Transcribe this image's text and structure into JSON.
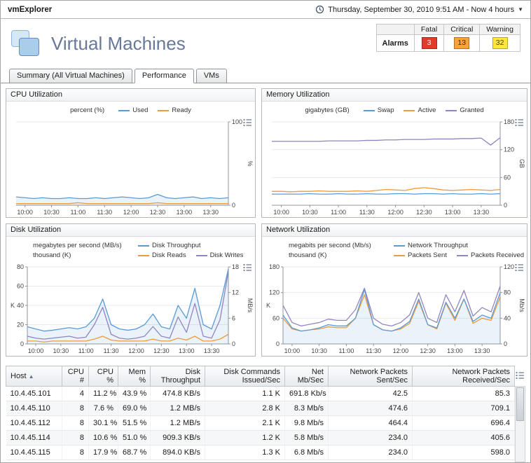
{
  "header": {
    "app_title": "vmExplorer",
    "time_range": "Thursday, September 30, 2010 9:51 AM - Now 4 hours",
    "page_title": "Virtual Machines"
  },
  "alarms": {
    "label": "Alarms",
    "columns": [
      "Fatal",
      "Critical",
      "Warning"
    ],
    "fatal": "3",
    "critical": "13",
    "warning": "32",
    "colors": {
      "fatal": "#e23b2e",
      "critical": "#f9a13a",
      "warning": "#ffe53d"
    }
  },
  "tabs": [
    {
      "label": "Summary (All Virtual Machines)",
      "active": false
    },
    {
      "label": "Performance",
      "active": true
    },
    {
      "label": "VMs",
      "active": false
    }
  ],
  "chart_data": [
    {
      "type": "line",
      "title": "CPU Utilization",
      "x_tick_labels": [
        "10:00",
        "10:30",
        "11:00",
        "11:30",
        "12:00",
        "12:30",
        "13:00",
        "13:30"
      ],
      "axes": {
        "right": {
          "ticks": [
            0,
            100
          ],
          "unit": "%"
        }
      },
      "legend": [
        {
          "prefix": "percent (%)",
          "items": [
            {
              "label": "Used",
              "color": "#5b9bd5"
            },
            {
              "label": "Ready",
              "color": "#ed9b3f"
            }
          ]
        }
      ],
      "series": [
        {
          "name": "Used",
          "color": "#5b9bd5",
          "axis": "right",
          "fill": true,
          "values": [
            10,
            9,
            8,
            9,
            8,
            8,
            9,
            8,
            8,
            9,
            8,
            9,
            10,
            9,
            8,
            9,
            13,
            9,
            8,
            9,
            10,
            8,
            9,
            8,
            9
          ]
        },
        {
          "name": "Ready",
          "color": "#ed9b3f",
          "axis": "right",
          "fill": false,
          "values": [
            2,
            2,
            2,
            2,
            2,
            2,
            2,
            3,
            2,
            2,
            2,
            2,
            2,
            2,
            2,
            2,
            3,
            2,
            2,
            2,
            2,
            2,
            2,
            2,
            2
          ]
        }
      ]
    },
    {
      "type": "line",
      "title": "Memory Utilization",
      "x_tick_labels": [
        "10:00",
        "10:30",
        "11:00",
        "11:30",
        "12:00",
        "12:30",
        "13:00",
        "13:30"
      ],
      "axes": {
        "right": {
          "ticks": [
            0,
            60,
            120,
            180
          ],
          "unit": "GB"
        }
      },
      "legend": [
        {
          "prefix": "gigabytes (GB)",
          "items": [
            {
              "label": "Swap",
              "color": "#5b9bd5"
            },
            {
              "label": "Active",
              "color": "#ed9b3f"
            },
            {
              "label": "Granted",
              "color": "#9184c0"
            }
          ]
        }
      ],
      "series": [
        {
          "name": "Swap",
          "color": "#5b9bd5",
          "axis": "right",
          "fill": false,
          "values": [
            24,
            24,
            24,
            24,
            25,
            24,
            24,
            25,
            24,
            24,
            25,
            24,
            24,
            25,
            25,
            24,
            25,
            25,
            24,
            25,
            24,
            24,
            25,
            24,
            25
          ]
        },
        {
          "name": "Active",
          "color": "#ed9b3f",
          "axis": "right",
          "fill": false,
          "values": [
            30,
            30,
            29,
            30,
            30,
            31,
            30,
            30,
            30,
            31,
            30,
            32,
            34,
            33,
            32,
            36,
            38,
            36,
            33,
            32,
            33,
            34,
            33,
            32,
            34
          ]
        },
        {
          "name": "Granted",
          "color": "#9184c0",
          "axis": "right",
          "fill": false,
          "values": [
            138,
            138,
            138,
            138,
            138,
            138,
            139,
            139,
            139,
            139,
            140,
            140,
            141,
            141,
            142,
            142,
            142,
            143,
            143,
            143,
            144,
            144,
            145,
            130,
            146
          ]
        }
      ]
    },
    {
      "type": "line",
      "title": "Disk Utilization",
      "x_tick_labels": [
        "10:00",
        "10:30",
        "11:00",
        "11:30",
        "12:00",
        "12:30",
        "13:00",
        "13:30"
      ],
      "axes": {
        "left": {
          "ticks": [
            0,
            20,
            40,
            60,
            80
          ],
          "unit": "K"
        },
        "right": {
          "ticks": [
            0,
            6,
            12,
            18
          ],
          "unit": "MB/s"
        }
      },
      "legend": [
        {
          "prefix": "megabytes per second (MB/s)",
          "items": [
            {
              "label": "Disk Throughput",
              "color": "#5b9bd5"
            }
          ]
        },
        {
          "prefix": "thousand (K)",
          "items": [
            {
              "label": "Disk Reads",
              "color": "#ed9b3f"
            },
            {
              "label": "Disk Writes",
              "color": "#9184c0"
            }
          ]
        }
      ],
      "series": [
        {
          "name": "Disk Reads",
          "color": "#ed9b3f",
          "axis": "left",
          "fill": false,
          "values": [
            3,
            3,
            2,
            3,
            3,
            3,
            3,
            3,
            5,
            8,
            4,
            3,
            3,
            3,
            3,
            5,
            3,
            3,
            6,
            4,
            8,
            3,
            3,
            5,
            10
          ]
        },
        {
          "name": "Disk Writes",
          "color": "#9184c0",
          "axis": "left",
          "fill": false,
          "values": [
            8,
            6,
            5,
            6,
            7,
            8,
            6,
            7,
            20,
            38,
            10,
            6,
            5,
            6,
            8,
            18,
            8,
            6,
            28,
            12,
            42,
            8,
            6,
            25,
            75
          ]
        },
        {
          "name": "Disk Throughput",
          "color": "#5b9bd5",
          "axis": "right",
          "fill": true,
          "values": [
            4,
            3.5,
            3,
            3.2,
            3.5,
            3.8,
            3.5,
            4,
            6,
            10.5,
            4.5,
            3.5,
            3.2,
            3.5,
            4.5,
            7,
            4,
            3.5,
            9,
            6,
            13,
            4.5,
            3.5,
            9,
            17.5
          ]
        }
      ]
    },
    {
      "type": "line",
      "title": "Network Utilization",
      "x_tick_labels": [
        "10:00",
        "10:30",
        "11:00",
        "11:30",
        "12:00",
        "12:30",
        "13:00",
        "13:30"
      ],
      "axes": {
        "left": {
          "ticks": [
            0,
            60,
            120,
            180
          ],
          "unit": "K"
        },
        "right": {
          "ticks": [
            0,
            40,
            80,
            120
          ],
          "unit": "Mb/s"
        }
      },
      "legend": [
        {
          "prefix": "megabits per second (Mb/s)",
          "items": [
            {
              "label": "Network Throughput",
              "color": "#5b9bd5"
            }
          ]
        },
        {
          "prefix": "thousand (K)",
          "items": [
            {
              "label": "Packets Sent",
              "color": "#ed9b3f"
            },
            {
              "label": "Packets Received",
              "color": "#9184c0"
            }
          ]
        }
      ],
      "series": [
        {
          "name": "Packets Sent",
          "color": "#ed9b3f",
          "axis": "left",
          "fill": false,
          "values": [
            60,
            35,
            30,
            33,
            35,
            40,
            38,
            38,
            60,
            115,
            45,
            33,
            30,
            35,
            48,
            100,
            45,
            35,
            95,
            55,
            105,
            48,
            60,
            55,
            110
          ]
        },
        {
          "name": "Packets Received",
          "color": "#9184c0",
          "axis": "left",
          "fill": false,
          "values": [
            90,
            50,
            42,
            46,
            50,
            58,
            55,
            55,
            80,
            130,
            60,
            46,
            42,
            50,
            68,
            120,
            60,
            50,
            115,
            75,
            125,
            65,
            85,
            75,
            135
          ]
        },
        {
          "name": "Network Throughput",
          "color": "#5b9bd5",
          "axis": "right",
          "fill": true,
          "values": [
            45,
            25,
            20,
            22,
            25,
            30,
            28,
            28,
            40,
            85,
            30,
            22,
            20,
            25,
            35,
            70,
            30,
            25,
            65,
            40,
            70,
            35,
            45,
            40,
            80
          ]
        }
      ]
    }
  ],
  "table": {
    "columns": [
      {
        "label": "Host",
        "align": "left",
        "sort": "asc"
      },
      {
        "label": "CPU #",
        "align": "right"
      },
      {
        "label": "CPU %",
        "align": "right"
      },
      {
        "label": "Mem %",
        "align": "right"
      },
      {
        "label": "Disk Throughput",
        "align": "right"
      },
      {
        "label": "Disk Commands Issued/Sec",
        "align": "right"
      },
      {
        "label": "Net Mb/Sec",
        "align": "right"
      },
      {
        "label": "Network Packets Sent/Sec",
        "align": "right"
      },
      {
        "label": "Network Packets Received/Sec",
        "align": "right"
      }
    ],
    "rows": [
      [
        "10.4.45.101",
        "4",
        "11.2 %",
        "43.9 %",
        "474.8 KB/s",
        "1.1 K",
        "691.8 Kb/s",
        "42.5",
        "85.3"
      ],
      [
        "10.4.45.110",
        "8",
        "7.6 %",
        "69.0 %",
        "1.2 MB/s",
        "2.8 K",
        "8.3 Mb/s",
        "474.6",
        "709.1"
      ],
      [
        "10.4.45.112",
        "8",
        "30.1 %",
        "51.5 %",
        "1.2 MB/s",
        "2.1 K",
        "9.8 Mb/s",
        "464.4",
        "696.4"
      ],
      [
        "10.4.45.114",
        "8",
        "10.6 %",
        "51.0 %",
        "909.3 KB/s",
        "1.2 K",
        "5.8 Mb/s",
        "234.0",
        "405.6"
      ],
      [
        "10.4.45.115",
        "8",
        "17.9 %",
        "68.7 %",
        "894.0 KB/s",
        "1.3 K",
        "6.8 Mb/s",
        "234.0",
        "598.0"
      ]
    ]
  }
}
